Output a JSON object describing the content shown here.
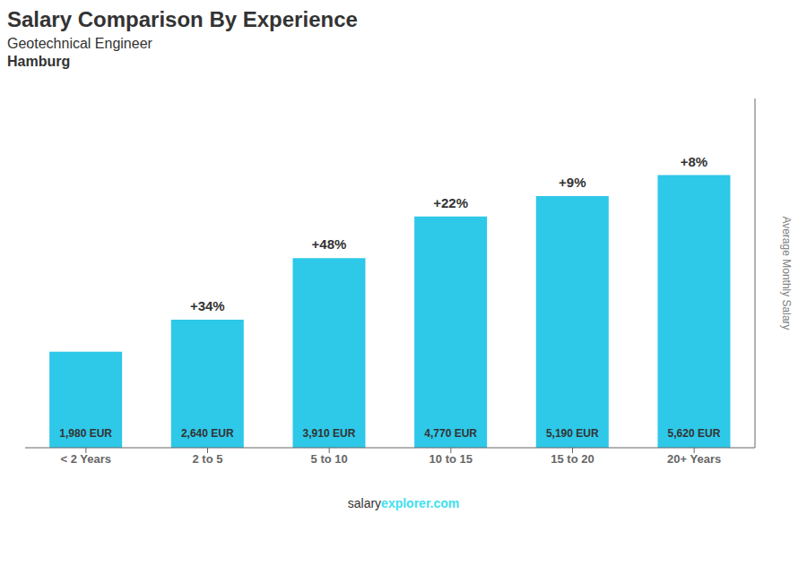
{
  "chart_data": {
    "type": "bar",
    "title": "Salary Comparison By Experience",
    "subtitle": [
      "Geotechnical Engineer",
      "Hamburg"
    ],
    "ylabel": "Average Monthly Salary",
    "categories": [
      "< 2 Years",
      "2 to 5",
      "5 to 10",
      "10 to 15",
      "15 to 20",
      "20+ Years"
    ],
    "values": [
      1980,
      2640,
      3910,
      4770,
      5190,
      5620
    ],
    "value_labels": [
      "1,980 EUR",
      "2,640 EUR",
      "3,910 EUR",
      "4,770 EUR",
      "5,190 EUR",
      "5,620 EUR"
    ],
    "data_labels": true,
    "color": "#2ec8e8",
    "ylim": [
      0,
      7200
    ],
    "tick_labels": "x",
    "annotations": [
      {
        "text": "+34%",
        "category": "2 to 5"
      },
      {
        "text": "+48%",
        "category": "5 to 10"
      },
      {
        "text": "+22%",
        "category": "10 to 15"
      },
      {
        "text": "+9%",
        "category": "15 to 20"
      },
      {
        "text": "+8%",
        "category": "20+ Years"
      },
      {
        "text": "salary"
      },
      {
        "text": "explorer.com",
        "color": "#40e0f0"
      }
    ]
  }
}
